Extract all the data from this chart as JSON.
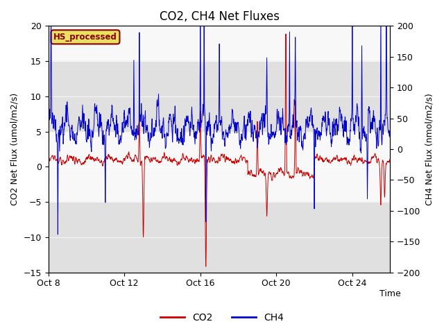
{
  "title": "CO2, CH4 Net Fluxes",
  "xlabel": "Time",
  "ylabel_left": "CO2 Net Flux (umol/m2/s)",
  "ylabel_right": "CH4 Net Flux (nmol/m2/s)",
  "ylim_left": [
    -15,
    20
  ],
  "ylim_right": [
    -200,
    200
  ],
  "xlim": [
    0,
    18
  ],
  "xtick_positions": [
    0,
    4,
    8,
    12,
    16
  ],
  "xtick_labels": [
    "Oct 8",
    "Oct 12",
    "Oct 16",
    "Oct 20",
    "Oct 24"
  ],
  "yticks_left": [
    -15,
    -10,
    -5,
    0,
    5,
    10,
    15,
    20
  ],
  "yticks_right": [
    -200,
    -150,
    -100,
    -50,
    0,
    50,
    100,
    150,
    200
  ],
  "co2_color": "#cc0000",
  "ch4_color": "#0000cc",
  "annotation_text": "HS_processed",
  "annotation_bg": "#e8e060",
  "annotation_border": "#8b0000",
  "legend_co2": "CO2",
  "legend_ch4": "CH4",
  "gray_bands": [
    {
      "ymin": 5,
      "ymax": 15
    },
    {
      "ymin": -15,
      "ymax": -5
    }
  ],
  "band_color": "#e0e0e0",
  "title_fontsize": 12,
  "label_fontsize": 9,
  "tick_fontsize": 9,
  "linewidth": 0.7,
  "bg_color": "#f8f8f8"
}
